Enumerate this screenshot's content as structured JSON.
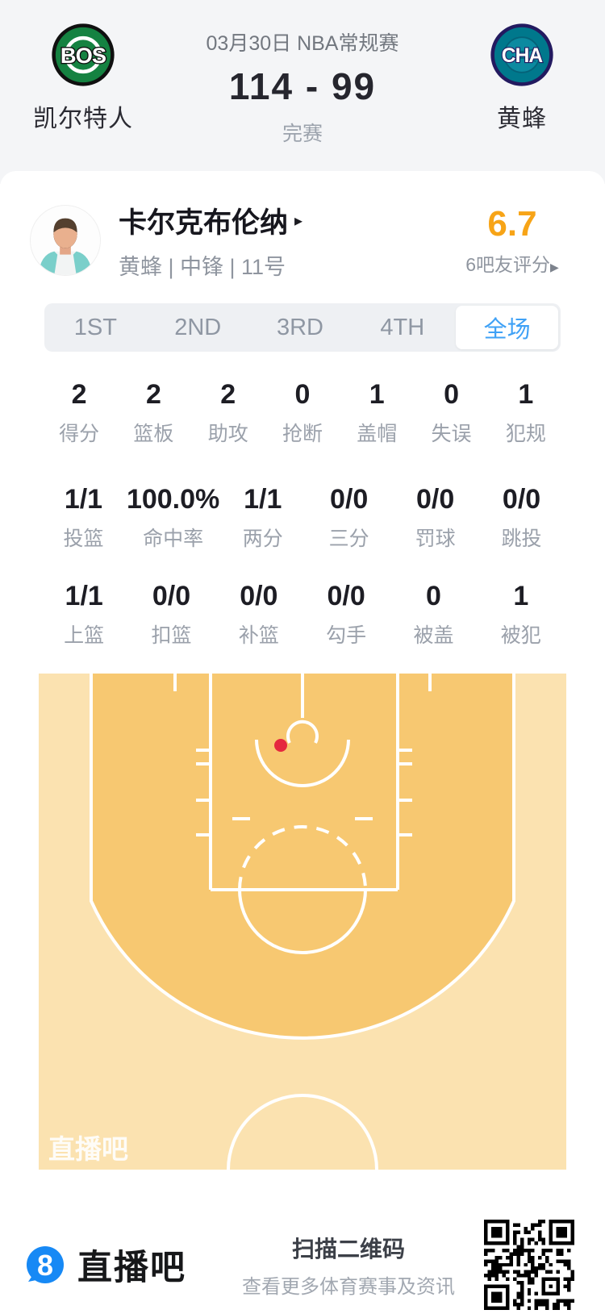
{
  "header": {
    "date_title": "03月30日 NBA常规赛",
    "score": "114 - 99",
    "status": "完赛",
    "home": {
      "abbr": "BOS",
      "name": "凯尔特人"
    },
    "away": {
      "abbr": "CHA",
      "name": "黄蜂"
    }
  },
  "player": {
    "name": "卡尔克布伦纳",
    "detail_arrow": "▸",
    "meta": "黄蜂 | 中锋 | 11号",
    "rating": "6.7",
    "rating_caption": "6吧友评分",
    "rating_arrow": "▶"
  },
  "tabs": [
    {
      "label": "1ST",
      "active": false
    },
    {
      "label": "2ND",
      "active": false
    },
    {
      "label": "3RD",
      "active": false
    },
    {
      "label": "4TH",
      "active": false
    },
    {
      "label": "全场",
      "active": true
    }
  ],
  "stats": {
    "row1": [
      {
        "value": "2",
        "label": "得分"
      },
      {
        "value": "2",
        "label": "篮板"
      },
      {
        "value": "2",
        "label": "助攻"
      },
      {
        "value": "0",
        "label": "抢断"
      },
      {
        "value": "1",
        "label": "盖帽"
      },
      {
        "value": "0",
        "label": "失误"
      },
      {
        "value": "1",
        "label": "犯规"
      }
    ],
    "row2": [
      {
        "value": "1/1",
        "label": "投篮"
      },
      {
        "value": "100.0%",
        "label": "命中率"
      },
      {
        "value": "1/1",
        "label": "两分"
      },
      {
        "value": "0/0",
        "label": "三分"
      },
      {
        "value": "0/0",
        "label": "罚球"
      },
      {
        "value": "0/0",
        "label": "跳投"
      }
    ],
    "row3": [
      {
        "value": "1/1",
        "label": "上篮"
      },
      {
        "value": "0/0",
        "label": "扣篮"
      },
      {
        "value": "0/0",
        "label": "补篮"
      },
      {
        "value": "0/0",
        "label": "勾手"
      },
      {
        "value": "0",
        "label": "被盖"
      },
      {
        "value": "1",
        "label": "被犯"
      }
    ]
  },
  "court": {
    "watermark": "直播吧",
    "shots": [
      {
        "x": "300",
        "y": "89",
        "color": "#e5283f"
      }
    ]
  },
  "footer": {
    "brand": "直播吧",
    "brand_glyph": "8",
    "scan_title": "扫描二维码",
    "scan_sub": "查看更多体育赛事及资讯"
  },
  "colors": {
    "accent_blue": "#3fa1f6",
    "rating_orange": "#f7a417",
    "court_inside": "#f7c871",
    "court_outside": "#fbe2b0",
    "shot_dot": "#e5283f",
    "footer_brand_blue": "#1789f5",
    "celtics_green": "#158241",
    "hornets_teal": "#00788c",
    "hornets_navy": "#231a60"
  }
}
